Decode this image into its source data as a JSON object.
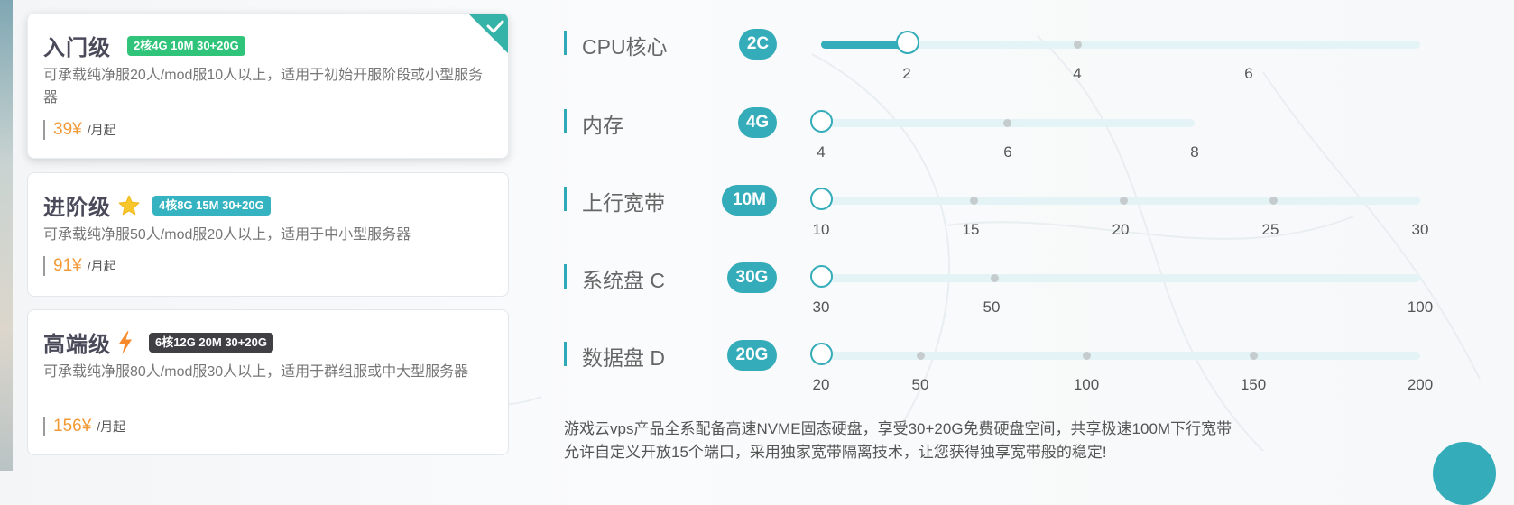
{
  "plans": [
    {
      "name": "入门级",
      "badge": "2核4G 10M 30+20G",
      "badge_color": "#2fc47a",
      "icon": "",
      "desc": "可承载纯净服20人/mod服10人以上，适用于初始开服阶段或小型服务器",
      "price": "39¥",
      "unit": "/月起",
      "selected": true
    },
    {
      "name": "进阶级",
      "badge": "4核8G 15M 30+20G",
      "badge_color": "#35b3c1",
      "icon": "star-icon",
      "desc": "可承载纯净服50人/mod服20人以上，适用于中小型服务器",
      "price": "91¥",
      "unit": "/月起",
      "selected": false
    },
    {
      "name": "高端级",
      "badge": "6核12G 20M 30+20G",
      "badge_color": "#3f3f44",
      "icon": "lightning-icon",
      "desc": "可承载纯净服80人/mod服30人以上，适用于群组服或中大型服务器",
      "price": "156¥",
      "unit": "/月起",
      "selected": false
    }
  ],
  "specs": [
    {
      "label": "CPU核心",
      "value": "2C",
      "ticks": [
        "2",
        "4",
        "6"
      ],
      "selected": "2"
    },
    {
      "label": "内存",
      "value": "4G",
      "ticks": [
        "4",
        "6",
        "8"
      ],
      "selected": "4"
    },
    {
      "label": "上行宽带",
      "value": "10M",
      "ticks": [
        "10",
        "15",
        "20",
        "25",
        "30"
      ],
      "selected": "10"
    },
    {
      "label": "系统盘 C",
      "value": "30G",
      "ticks": [
        "30",
        "50",
        "100"
      ],
      "selected": "30"
    },
    {
      "label": "数据盘 D",
      "value": "20G",
      "ticks": [
        "20",
        "50",
        "100",
        "150",
        "200"
      ],
      "selected": "20"
    }
  ],
  "note": {
    "line1": "游戏云vps产品全系配备高速NVME固态硬盘，享受30+20G免费硬盘空间，共享极速100M下行宽带",
    "line2": "允许自定义开放15个端口，采用独家宽带隔离技术，让您获得独享宽带般的稳定!"
  },
  "colors": {
    "accent": "#35acb9",
    "price": "#f29a38",
    "star": "#f7c72c",
    "lightning": "#f7892b"
  }
}
